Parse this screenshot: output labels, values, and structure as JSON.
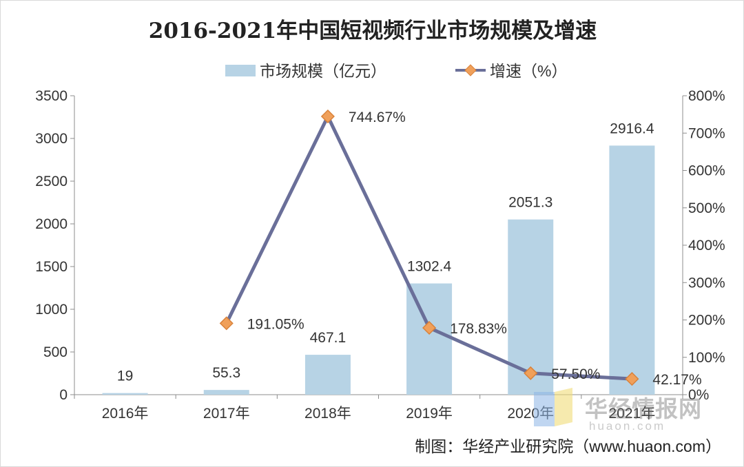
{
  "chart_data": {
    "type": "bar+line",
    "title": "2016-2021年中国短视频行业市场规模及增速",
    "categories": [
      "2016年",
      "2017年",
      "2018年",
      "2019年",
      "2020年",
      "2021年"
    ],
    "series": [
      {
        "name": "市场规模（亿元）",
        "type": "bar",
        "axis": "left",
        "values": [
          19,
          55.3,
          467.1,
          1302.4,
          2051.3,
          2916.4
        ],
        "labels": [
          "19",
          "55.3",
          "467.1",
          "1302.4",
          "2051.3",
          "2916.4"
        ]
      },
      {
        "name": "增速（%）",
        "type": "line",
        "axis": "right",
        "values": [
          null,
          191.05,
          744.67,
          178.83,
          57.5,
          42.17
        ],
        "labels": [
          "",
          "191.05%",
          "744.67%",
          "178.83%",
          "57.50%",
          "42.17%"
        ]
      }
    ],
    "y_left": {
      "ylim": [
        0,
        3500
      ],
      "ticks": [
        "0",
        "500",
        "1000",
        "1500",
        "2000",
        "2500",
        "3000",
        "3500"
      ]
    },
    "y_right": {
      "ylim": [
        0,
        800
      ],
      "ticks": [
        "0%",
        "100%",
        "200%",
        "300%",
        "400%",
        "500%",
        "600%",
        "700%",
        "800%"
      ]
    },
    "legend_position": "top-center",
    "grid": false
  },
  "colors": {
    "bar": "#b7d3e5",
    "line": "#6a6f99",
    "marker": "#f0a05a",
    "marker_stroke": "#d9823a",
    "axis": "#8c8c8c"
  },
  "source_text": "制图：华经产业研究院（www.huaon.com）",
  "watermark": {
    "brand": "华经情报网",
    "site": "huaon.com"
  }
}
